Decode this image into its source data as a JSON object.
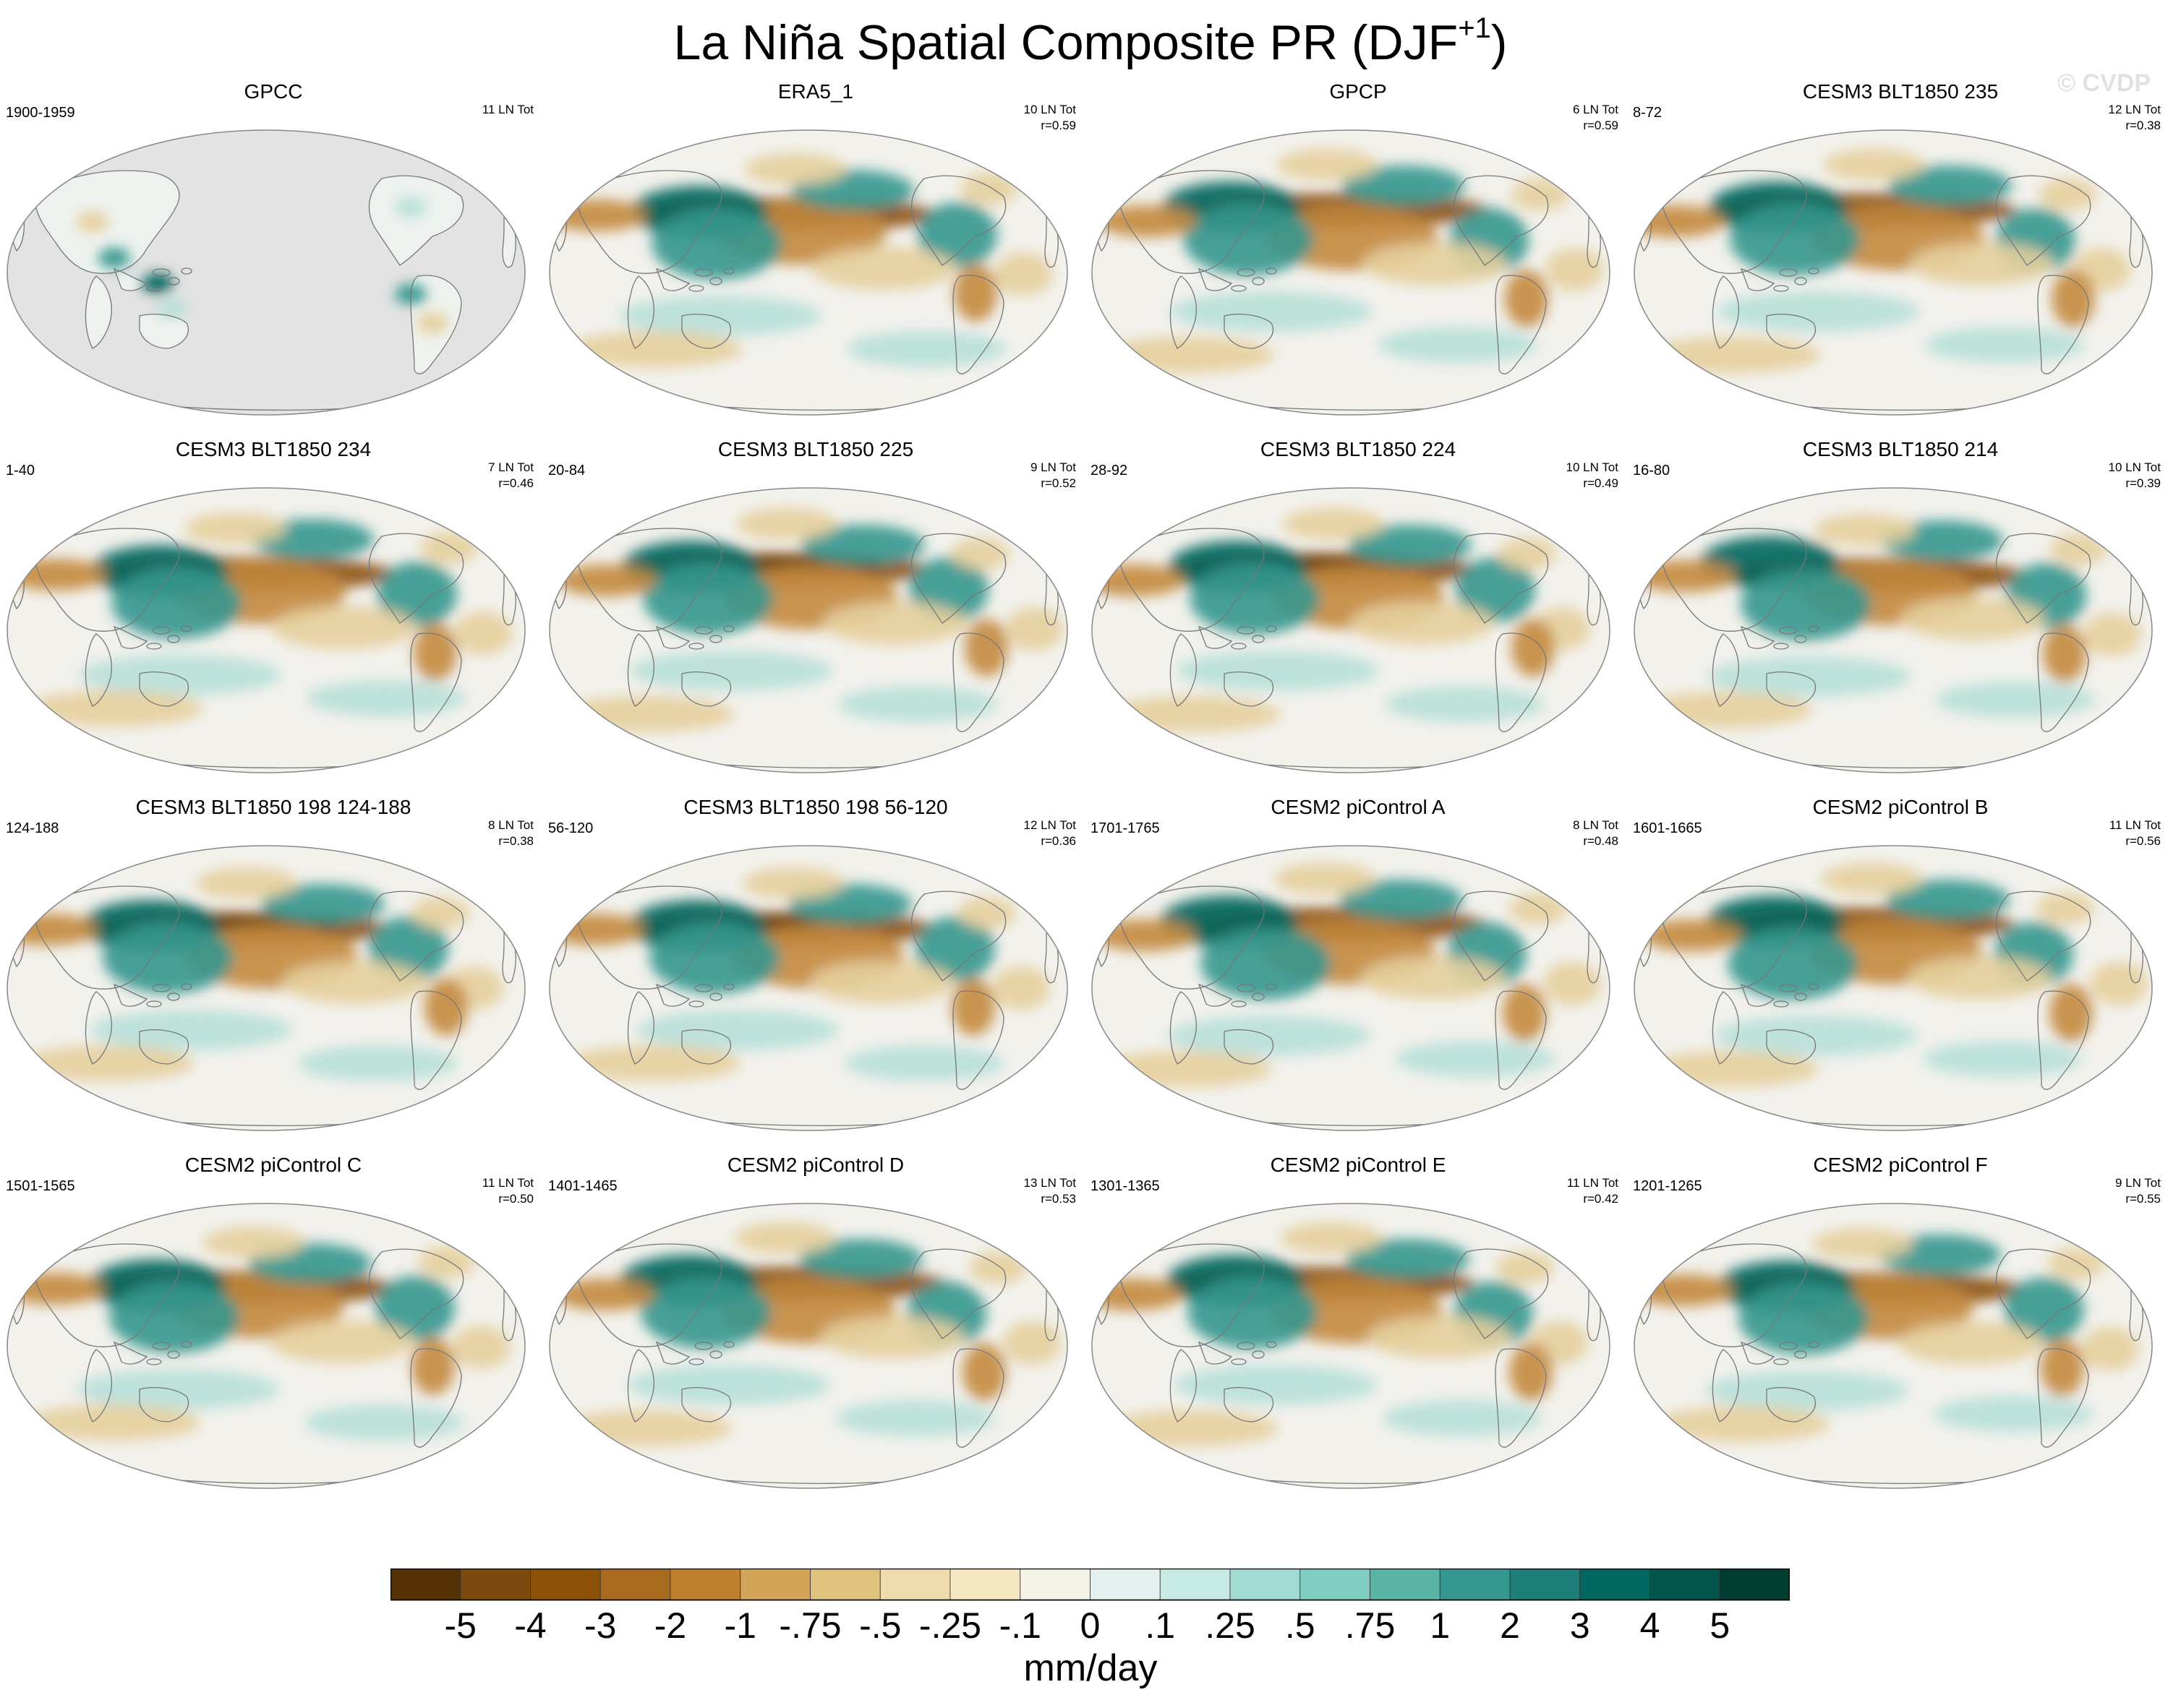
{
  "title": {
    "main": "La Niña Spatial Composite PR (DJF",
    "superscript": "+1",
    "suffix": ")"
  },
  "watermark": "© CVDP",
  "panels": [
    {
      "title": "GPCC",
      "years": "1900-1959",
      "count": "11 LN Tot",
      "r": "",
      "style": "obs"
    },
    {
      "title": "ERA5_1",
      "years": "",
      "count": "10 LN Tot",
      "r": "r=0.59",
      "style": "reanalysis"
    },
    {
      "title": "GPCP",
      "years": "",
      "count": "6 LN Tot",
      "r": "r=0.59",
      "style": "reanalysis"
    },
    {
      "title": "CESM3 BLT1850 235",
      "years": "8-72",
      "count": "12 LN Tot",
      "r": "r=0.38",
      "style": "model"
    },
    {
      "title": "CESM3 BLT1850 234",
      "years": "1-40",
      "count": "7 LN Tot",
      "r": "r=0.46",
      "style": "model"
    },
    {
      "title": "CESM3 BLT1850 225",
      "years": "20-84",
      "count": "9 LN Tot",
      "r": "r=0.52",
      "style": "model"
    },
    {
      "title": "CESM3 BLT1850 224",
      "years": "28-92",
      "count": "10 LN Tot",
      "r": "r=0.49",
      "style": "model"
    },
    {
      "title": "CESM3 BLT1850 214",
      "years": "16-80",
      "count": "10 LN Tot",
      "r": "r=0.39",
      "style": "model"
    },
    {
      "title": "CESM3 BLT1850 198 124-188",
      "years": "124-188",
      "count": "8 LN Tot",
      "r": "r=0.38",
      "style": "model"
    },
    {
      "title": "CESM3 BLT1850 198 56-120",
      "years": "56-120",
      "count": "12 LN Tot",
      "r": "r=0.36",
      "style": "model"
    },
    {
      "title": "CESM2 piControl A",
      "years": "1701-1765",
      "count": "8 LN Tot",
      "r": "r=0.48",
      "style": "model"
    },
    {
      "title": "CESM2 piControl B",
      "years": "1601-1665",
      "count": "11 LN Tot",
      "r": "r=0.56",
      "style": "model"
    },
    {
      "title": "CESM2 piControl C",
      "years": "1501-1565",
      "count": "11 LN Tot",
      "r": "r=0.50",
      "style": "model"
    },
    {
      "title": "CESM2 piControl D",
      "years": "1401-1465",
      "count": "13 LN Tot",
      "r": "r=0.53",
      "style": "model"
    },
    {
      "title": "CESM2 piControl E",
      "years": "1301-1365",
      "count": "11 LN Tot",
      "r": "r=0.42",
      "style": "model"
    },
    {
      "title": "CESM2 piControl F",
      "years": "1201-1265",
      "count": "9 LN Tot",
      "r": "r=0.55",
      "style": "model"
    }
  ],
  "colorbar": {
    "colors": [
      "#543005",
      "#7a4a0f",
      "#8c5109",
      "#a86a1f",
      "#bf812d",
      "#d2a55b",
      "#dfc27d",
      "#efdcae",
      "#f6e8c3",
      "#f5f2ea",
      "#e6f0ef",
      "#c7eae5",
      "#a2dbd2",
      "#80cdc1",
      "#5ab4a6",
      "#35978f",
      "#1f7f78",
      "#01665e",
      "#02554c",
      "#003c30"
    ],
    "labels": [
      "-5",
      "-4",
      "-3",
      "-2",
      "-1",
      "-.75",
      "-.5",
      "-.25",
      "-.1",
      "0",
      ".1",
      ".25",
      ".5",
      ".75",
      "1",
      "2",
      "3",
      "4",
      "5"
    ],
    "units": "mm/day"
  },
  "map_colors": {
    "ocean_base": "#f2f1ec",
    "gpcc_ocean": "#e3e3e3",
    "coast": "#777777",
    "dry": "#8c5109",
    "dry_mid": "#c48a3f",
    "dry_light": "#e6cf9c",
    "wet": "#01665e",
    "wet_mid": "#35978f",
    "wet_light": "#b8e0d9"
  }
}
